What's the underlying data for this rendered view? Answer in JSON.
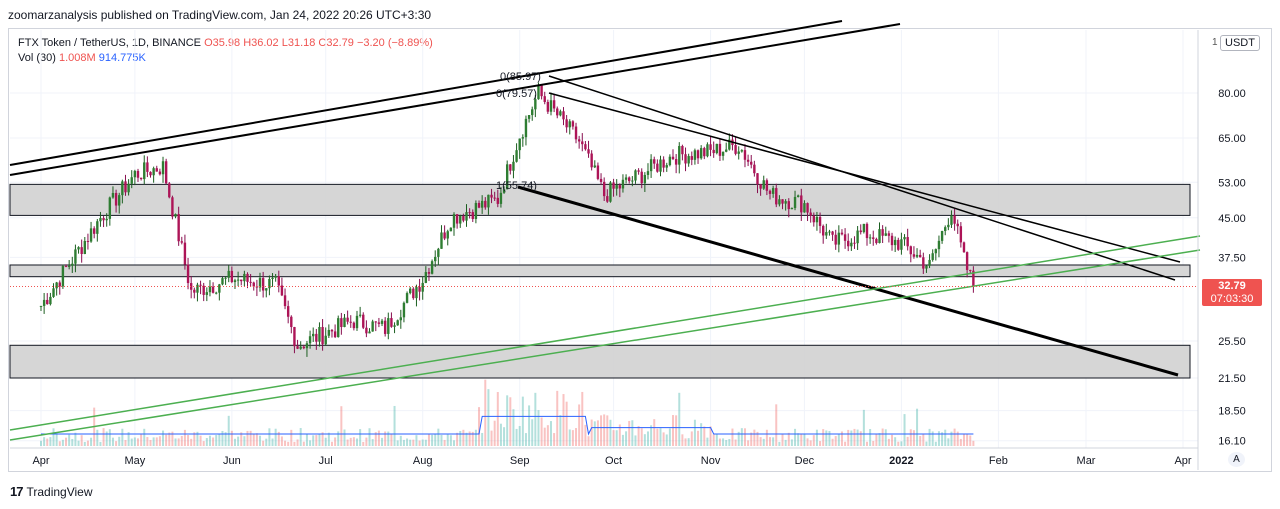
{
  "header": {
    "text": "zoomarzanalysis published on TradingView.com, Jan 24, 2022 20:26 UTC+3:30"
  },
  "legend": {
    "symbol": "FTX Token / TetherUS, 1D, BINANCE",
    "ohlc": "O35.98 H36.02 L31.18 C32.79 −3.20 (−8.89%)",
    "vol_label": "Vol (30)",
    "vol_value": "1.008M",
    "vol_ma": "914.775K"
  },
  "currency": "USDT",
  "currency_lead": "1",
  "last_price": {
    "price": "32.79",
    "countdown": "07:03:30"
  },
  "footer": {
    "brand": "TradingView"
  },
  "auto_label": "A",
  "chart_data": {
    "type": "candlestick",
    "scale": "log",
    "y_ticks": [
      80.0,
      65.0,
      53.0,
      45.0,
      37.5,
      25.5,
      21.5,
      18.5,
      16.1
    ],
    "x_ticks": [
      "Apr",
      "May",
      "Jun",
      "Jul",
      "Aug",
      "Sep",
      "Oct",
      "Nov",
      "Dec",
      "2022",
      "Feb",
      "Mar",
      "Apr"
    ],
    "close_trajectory": [
      [
        "2021-04-01",
        30
      ],
      [
        "2021-04-20",
        45
      ],
      [
        "2021-05-01",
        55
      ],
      [
        "2021-05-10",
        57
      ],
      [
        "2021-05-19",
        32
      ],
      [
        "2021-06-01",
        34
      ],
      [
        "2021-06-15",
        33
      ],
      [
        "2021-06-22",
        25
      ],
      [
        "2021-07-10",
        28
      ],
      [
        "2021-07-20",
        27
      ],
      [
        "2021-08-01",
        34
      ],
      [
        "2021-08-10",
        45
      ],
      [
        "2021-08-25",
        49
      ],
      [
        "2021-09-01",
        66
      ],
      [
        "2021-09-07",
        80
      ],
      [
        "2021-09-20",
        64
      ],
      [
        "2021-09-28",
        50
      ],
      [
        "2021-10-10",
        55
      ],
      [
        "2021-10-20",
        60
      ],
      [
        "2021-11-01",
        61
      ],
      [
        "2021-11-10",
        63
      ],
      [
        "2021-11-20",
        50
      ],
      [
        "2021-12-01",
        48
      ],
      [
        "2021-12-10",
        40
      ],
      [
        "2021-12-20",
        42
      ],
      [
        "2022-01-01",
        40
      ],
      [
        "2022-01-10",
        36
      ],
      [
        "2022-01-17",
        47
      ],
      [
        "2022-01-21",
        37
      ],
      [
        "2022-01-24",
        32.79
      ]
    ],
    "zones": [
      {
        "low": 45.5,
        "high": 52.5
      },
      {
        "low": 34.3,
        "high": 36.2
      },
      {
        "low": 21.5,
        "high": 25.0
      }
    ],
    "fib_labels": [
      "0(85.97)",
      "0(79.57)",
      "1(55.74)"
    ],
    "volume_shown": true
  }
}
